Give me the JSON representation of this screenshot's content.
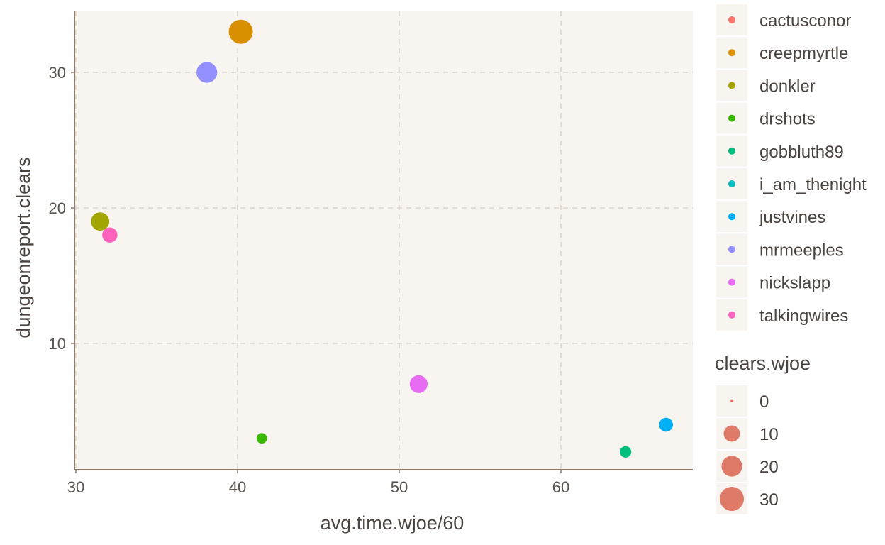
{
  "chart_data": {
    "type": "scatter",
    "xlabel": "avg.time.wjoe/60",
    "ylabel": "dungeonreport.clears",
    "xlim": [
      30,
      68
    ],
    "ylim": [
      1,
      35
    ],
    "x_ticks": [
      30,
      40,
      50,
      60
    ],
    "y_ticks": [
      10,
      20,
      30
    ],
    "grid": true,
    "colour_legend": {
      "placement": "right",
      "entries": [
        {
          "name": "cactusconor",
          "color": "#F8766D"
        },
        {
          "name": "creepmyrtle",
          "color": "#D89000"
        },
        {
          "name": "donkler",
          "color": "#A3A500"
        },
        {
          "name": "drshots",
          "color": "#39B600"
        },
        {
          "name": "gobbluth89",
          "color": "#00BF7D"
        },
        {
          "name": "i_am_thenight",
          "color": "#00BFC4"
        },
        {
          "name": "justvines",
          "color": "#00B0F6"
        },
        {
          "name": "mrmeeples",
          "color": "#9590FF"
        },
        {
          "name": "nickslapp",
          "color": "#E76BF3"
        },
        {
          "name": "talkingwires",
          "color": "#FF62BC"
        }
      ]
    },
    "size_legend": {
      "title": "clears.wjoe",
      "color": "#E07A68",
      "values": [
        0,
        10,
        20,
        30
      ]
    },
    "points": [
      {
        "name": "creepmyrtle",
        "x": 40.2,
        "y": 33,
        "size": 30
      },
      {
        "name": "mrmeeples",
        "x": 38.1,
        "y": 30,
        "size": 20
      },
      {
        "name": "donkler",
        "x": 31.5,
        "y": 19,
        "size": 14
      },
      {
        "name": "talkingwires",
        "x": 32.1,
        "y": 18,
        "size": 8
      },
      {
        "name": "nickslapp",
        "x": 51.2,
        "y": 7,
        "size": 13
      },
      {
        "name": "drshots",
        "x": 41.5,
        "y": 3,
        "size": 2
      },
      {
        "name": "justvines",
        "x": 66.5,
        "y": 4,
        "size": 6
      },
      {
        "name": "gobbluth89",
        "x": 64.0,
        "y": 2,
        "size": 3
      }
    ]
  },
  "colors": {
    "panel_bg": "#F8F5F1",
    "grid": "#DDD5CC",
    "axis_line": "#8C7B6B"
  }
}
